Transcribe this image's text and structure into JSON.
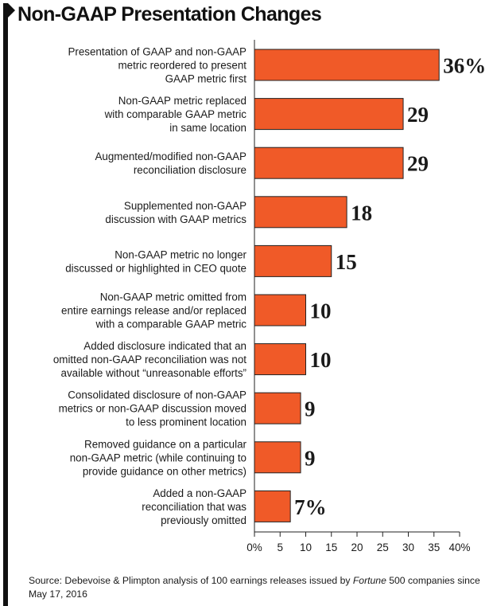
{
  "chart_data": {
    "type": "bar",
    "orientation": "horizontal",
    "title": "Non-GAAP Presentation Changes",
    "categories": [
      [
        "Presentation of GAAP and non-GAAP",
        "metric reordered to present",
        "GAAP metric first"
      ],
      [
        "Non-GAAP metric replaced",
        "with comparable GAAP metric",
        "in same location"
      ],
      [
        "Augmented/modified non-GAAP",
        "reconciliation disclosure"
      ],
      [
        "Supplemented non-GAAP",
        "discussion with GAAP metrics"
      ],
      [
        "Non-GAAP metric no longer",
        "discussed or highlighted in CEO quote"
      ],
      [
        "Non-GAAP metric omitted from",
        "entire earnings release and/or replaced",
        "with a comparable GAAP metric"
      ],
      [
        "Added disclosure indicated that an",
        "omitted non-GAAP reconciliation was not",
        "available without “unreasonable efforts”"
      ],
      [
        "Consolidated disclosure of non-GAAP",
        "metrics or non-GAAP discussion moved",
        "to less prominent location"
      ],
      [
        "Removed guidance on a particular",
        "non-GAAP metric (while continuing to",
        "provide guidance on other metrics)"
      ],
      [
        "Added a non-GAAP",
        "reconciliation that was",
        "previously omitted"
      ]
    ],
    "values": [
      36,
      29,
      29,
      18,
      15,
      10,
      10,
      9,
      9,
      7
    ],
    "value_labels": [
      "36%",
      "29",
      "29",
      "18",
      "15",
      "10",
      "10",
      "9",
      "9",
      "7%"
    ],
    "x_ticks": [
      "0%",
      "5",
      "10",
      "15",
      "20",
      "25",
      "30",
      "35",
      "40%"
    ],
    "xlim": [
      0,
      40
    ],
    "grid": false,
    "bar_color": "#f05a28"
  },
  "source": {
    "prefix": "Source: Debevoise & Plimpton analysis of 100 earnings releases issued by ",
    "italic": "Fortune",
    "suffix": " 500 companies since May 17, 2016"
  }
}
